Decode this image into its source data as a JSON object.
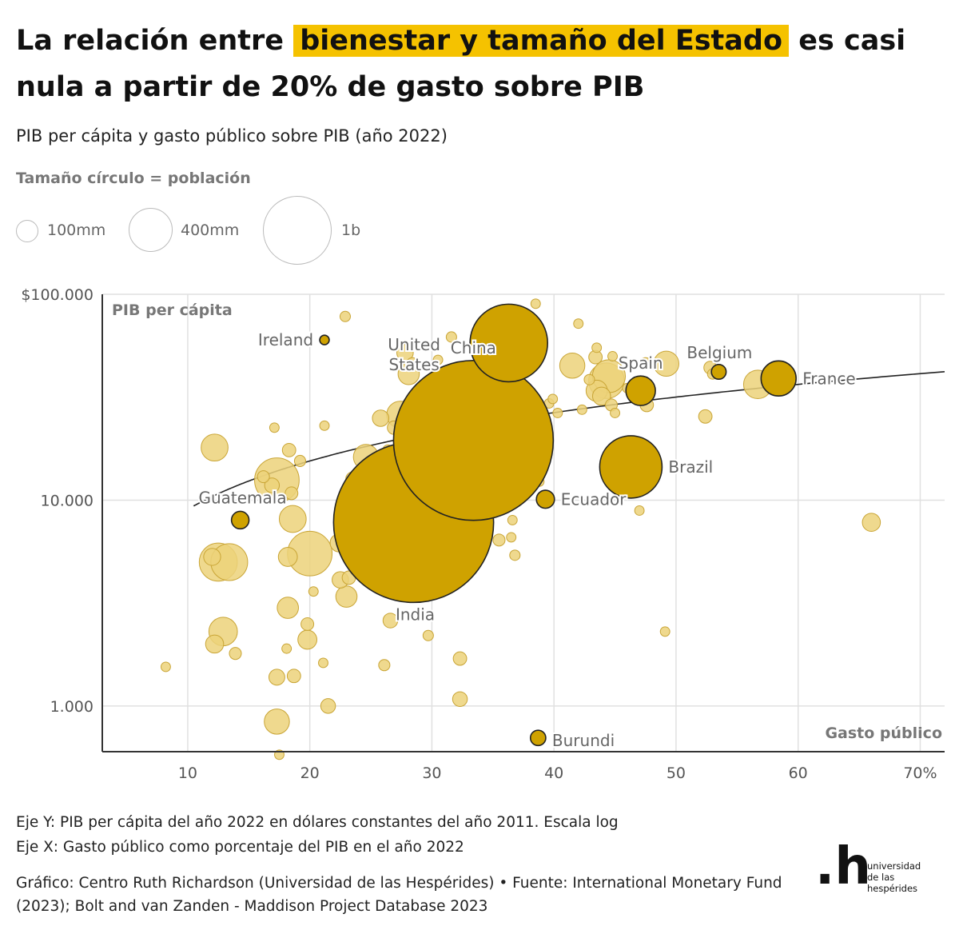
{
  "title": {
    "part1": "La relación entre",
    "highlight": "bienestar y tamaño del Estado",
    "part2": "es casi nula a partir de 20% de gasto sobre PIB"
  },
  "subtitle": "PIB per cápita y gasto público sobre PIB (año 2022)",
  "size_legend": {
    "title": "Tamaño círculo = población",
    "items": [
      {
        "label": "100mm",
        "population": 100000000
      },
      {
        "label": "400mm",
        "population": 400000000
      },
      {
        "label": "1b",
        "population": 1000000000
      }
    ]
  },
  "colors": {
    "highlight": "#f5c200",
    "highlighted_bubble": "#cfa200",
    "bubble": "#ecd27a",
    "bubble_stroke": "#c9a536",
    "grid": "#e0e0e0",
    "axis": "#333333",
    "trend": "#222222"
  },
  "chart_data": {
    "type": "scatter",
    "xlabel": "Gasto público",
    "ylabel": "PIB per cápita",
    "x_scale": "linear",
    "y_scale": "log",
    "xlim": [
      3,
      72
    ],
    "ylim": [
      600,
      100000
    ],
    "x_ticks": [
      {
        "value": 10,
        "label": "10"
      },
      {
        "value": 20,
        "label": "20"
      },
      {
        "value": 30,
        "label": "30"
      },
      {
        "value": 40,
        "label": "40"
      },
      {
        "value": 50,
        "label": "50"
      },
      {
        "value": 60,
        "label": "60"
      },
      {
        "value": 70,
        "label": "70%"
      }
    ],
    "y_ticks": [
      {
        "value": 1000,
        "label": "1.000"
      },
      {
        "value": 10000,
        "label": "10.000"
      },
      {
        "value": 100000,
        "label": "$100.000"
      }
    ],
    "trend_line": {
      "type": "logarithmic",
      "x0": 10.5,
      "x1": 72,
      "y_at_20": 15500,
      "y_at_60": 36500
    },
    "highlighted": [
      {
        "name": "Ireland",
        "x": 21.2,
        "y": 60000,
        "pop_m": 5,
        "label_pos": "left"
      },
      {
        "name": "United States",
        "x": 36.3,
        "y": 58000,
        "pop_m": 333,
        "label_pos": "left-stacked"
      },
      {
        "name": "China",
        "x": 33.4,
        "y": 19500,
        "pop_m": 1412,
        "label_pos": "top"
      },
      {
        "name": "India",
        "x": 28.5,
        "y": 7800,
        "pop_m": 1417,
        "label_pos": "bottom"
      },
      {
        "name": "Spain",
        "x": 47.1,
        "y": 34000,
        "pop_m": 48,
        "label_pos": "top"
      },
      {
        "name": "Belgium",
        "x": 53.5,
        "y": 42000,
        "pop_m": 12,
        "label_pos": "top"
      },
      {
        "name": "France",
        "x": 58.4,
        "y": 39000,
        "pop_m": 68,
        "label_pos": "right"
      },
      {
        "name": "Brazil",
        "x": 46.3,
        "y": 14500,
        "pop_m": 215,
        "label_pos": "right"
      },
      {
        "name": "Ecuador",
        "x": 39.3,
        "y": 10100,
        "pop_m": 18,
        "label_pos": "right"
      },
      {
        "name": "Guatemala",
        "x": 14.3,
        "y": 8000,
        "pop_m": 17,
        "label_pos": "top-left"
      },
      {
        "name": "Burundi",
        "x": 38.7,
        "y": 700,
        "pop_m": 13,
        "label_pos": "right"
      }
    ],
    "others": [
      {
        "x": 8.2,
        "y": 1550,
        "pop_m": 5
      },
      {
        "x": 12.2,
        "y": 18000,
        "pop_m": 40
      },
      {
        "x": 12.0,
        "y": 5300,
        "pop_m": 16
      },
      {
        "x": 12.5,
        "y": 5000,
        "pop_m": 80
      },
      {
        "x": 13.4,
        "y": 5000,
        "pop_m": 75
      },
      {
        "x": 12.9,
        "y": 2300,
        "pop_m": 45
      },
      {
        "x": 12.2,
        "y": 2000,
        "pop_m": 18
      },
      {
        "x": 13.9,
        "y": 1800,
        "pop_m": 8
      },
      {
        "x": 16.2,
        "y": 13000,
        "pop_m": 8
      },
      {
        "x": 16.9,
        "y": 11800,
        "pop_m": 12
      },
      {
        "x": 17.3,
        "y": 12500,
        "pop_m": 110
      },
      {
        "x": 17.1,
        "y": 22500,
        "pop_m": 5
      },
      {
        "x": 18.3,
        "y": 17500,
        "pop_m": 10
      },
      {
        "x": 19.2,
        "y": 15500,
        "pop_m": 7
      },
      {
        "x": 18.5,
        "y": 10800,
        "pop_m": 9
      },
      {
        "x": 18.6,
        "y": 8100,
        "pop_m": 40
      },
      {
        "x": 18.2,
        "y": 5300,
        "pop_m": 20
      },
      {
        "x": 20.0,
        "y": 5500,
        "pop_m": 110
      },
      {
        "x": 18.2,
        "y": 3000,
        "pop_m": 25
      },
      {
        "x": 20.3,
        "y": 3600,
        "pop_m": 5
      },
      {
        "x": 19.8,
        "y": 2500,
        "pop_m": 9
      },
      {
        "x": 19.8,
        "y": 2100,
        "pop_m": 20
      },
      {
        "x": 18.1,
        "y": 1900,
        "pop_m": 5
      },
      {
        "x": 18.7,
        "y": 1400,
        "pop_m": 10
      },
      {
        "x": 17.3,
        "y": 1380,
        "pop_m": 14
      },
      {
        "x": 21.1,
        "y": 1620,
        "pop_m": 5
      },
      {
        "x": 17.3,
        "y": 840,
        "pop_m": 35
      },
      {
        "x": 17.5,
        "y": 580,
        "pop_m": 5
      },
      {
        "x": 21.5,
        "y": 1000,
        "pop_m": 12
      },
      {
        "x": 21.2,
        "y": 23000,
        "pop_m": 5
      },
      {
        "x": 22.9,
        "y": 78000,
        "pop_m": 6
      },
      {
        "x": 22.5,
        "y": 4100,
        "pop_m": 15
      },
      {
        "x": 22.4,
        "y": 6200,
        "pop_m": 18
      },
      {
        "x": 23.2,
        "y": 4200,
        "pop_m": 10
      },
      {
        "x": 23.0,
        "y": 3400,
        "pop_m": 25
      },
      {
        "x": 23.3,
        "y": 10500,
        "pop_m": 5
      },
      {
        "x": 23.5,
        "y": 12700,
        "pop_m": 10
      },
      {
        "x": 23.7,
        "y": 8700,
        "pop_m": 5
      },
      {
        "x": 24.3,
        "y": 5200,
        "pop_m": 8
      },
      {
        "x": 24.6,
        "y": 16200,
        "pop_m": 35
      },
      {
        "x": 25.1,
        "y": 4000,
        "pop_m": 10
      },
      {
        "x": 25.8,
        "y": 25000,
        "pop_m": 15
      },
      {
        "x": 26.4,
        "y": 17500,
        "pop_m": 6
      },
      {
        "x": 26.9,
        "y": 22500,
        "pop_m": 10
      },
      {
        "x": 27.4,
        "y": 26000,
        "pop_m": 40
      },
      {
        "x": 26.1,
        "y": 1580,
        "pop_m": 7
      },
      {
        "x": 26.6,
        "y": 2600,
        "pop_m": 12
      },
      {
        "x": 27.0,
        "y": 4300,
        "pop_m": 12
      },
      {
        "x": 27.8,
        "y": 52000,
        "pop_m": 15
      },
      {
        "x": 28.1,
        "y": 41000,
        "pop_m": 25
      },
      {
        "x": 28.4,
        "y": 46000,
        "pop_m": 8
      },
      {
        "x": 28.8,
        "y": 16000,
        "pop_m": 50
      },
      {
        "x": 29.1,
        "y": 13500,
        "pop_m": 35
      },
      {
        "x": 29.9,
        "y": 19500,
        "pop_m": 5
      },
      {
        "x": 30.0,
        "y": 11500,
        "pop_m": 10
      },
      {
        "x": 29.7,
        "y": 2200,
        "pop_m": 6
      },
      {
        "x": 30.5,
        "y": 48000,
        "pop_m": 5
      },
      {
        "x": 31.6,
        "y": 62000,
        "pop_m": 6
      },
      {
        "x": 32.2,
        "y": 11000,
        "pop_m": 15
      },
      {
        "x": 32.5,
        "y": 30500,
        "pop_m": 5
      },
      {
        "x": 32.3,
        "y": 1700,
        "pop_m": 10
      },
      {
        "x": 32.3,
        "y": 1080,
        "pop_m": 12
      },
      {
        "x": 32.8,
        "y": 9500,
        "pop_m": 10
      },
      {
        "x": 34.1,
        "y": 9200,
        "pop_m": 6
      },
      {
        "x": 34.8,
        "y": 13500,
        "pop_m": 40
      },
      {
        "x": 35.1,
        "y": 10800,
        "pop_m": 12
      },
      {
        "x": 35.5,
        "y": 6400,
        "pop_m": 8
      },
      {
        "x": 36.1,
        "y": 25000,
        "pop_m": 60
      },
      {
        "x": 36.7,
        "y": 24800,
        "pop_m": 20
      },
      {
        "x": 37.2,
        "y": 18000,
        "pop_m": 30
      },
      {
        "x": 37.0,
        "y": 13500,
        "pop_m": 40
      },
      {
        "x": 36.3,
        "y": 37500,
        "pop_m": 6
      },
      {
        "x": 36.5,
        "y": 6600,
        "pop_m": 5
      },
      {
        "x": 36.6,
        "y": 8000,
        "pop_m": 5
      },
      {
        "x": 36.8,
        "y": 5400,
        "pop_m": 6
      },
      {
        "x": 37.1,
        "y": 23000,
        "pop_m": 12
      },
      {
        "x": 38.3,
        "y": 53000,
        "pop_m": 15
      },
      {
        "x": 38.5,
        "y": 90000,
        "pop_m": 5
      },
      {
        "x": 38.3,
        "y": 20000,
        "pop_m": 5
      },
      {
        "x": 38.8,
        "y": 12300,
        "pop_m": 5
      },
      {
        "x": 39.6,
        "y": 29500,
        "pop_m": 5
      },
      {
        "x": 39.9,
        "y": 31000,
        "pop_m": 5
      },
      {
        "x": 40.3,
        "y": 26500,
        "pop_m": 5
      },
      {
        "x": 41.5,
        "y": 45000,
        "pop_m": 35
      },
      {
        "x": 42.0,
        "y": 72000,
        "pop_m": 5
      },
      {
        "x": 42.3,
        "y": 27500,
        "pop_m": 5
      },
      {
        "x": 42.9,
        "y": 38500,
        "pop_m": 6
      },
      {
        "x": 43.4,
        "y": 49500,
        "pop_m": 10
      },
      {
        "x": 43.5,
        "y": 55000,
        "pop_m": 5
      },
      {
        "x": 43.5,
        "y": 34000,
        "pop_m": 25
      },
      {
        "x": 43.9,
        "y": 32000,
        "pop_m": 18
      },
      {
        "x": 44.3,
        "y": 38000,
        "pop_m": 70
      },
      {
        "x": 44.5,
        "y": 40000,
        "pop_m": 60
      },
      {
        "x": 44.8,
        "y": 50000,
        "pop_m": 5
      },
      {
        "x": 44.7,
        "y": 29000,
        "pop_m": 8
      },
      {
        "x": 45.0,
        "y": 26500,
        "pop_m": 5
      },
      {
        "x": 46.0,
        "y": 35000,
        "pop_m": 5
      },
      {
        "x": 47.5,
        "y": 46000,
        "pop_m": 8
      },
      {
        "x": 47.6,
        "y": 29000,
        "pop_m": 10
      },
      {
        "x": 47.0,
        "y": 8900,
        "pop_m": 5
      },
      {
        "x": 49.2,
        "y": 46000,
        "pop_m": 35
      },
      {
        "x": 49.1,
        "y": 2300,
        "pop_m": 5
      },
      {
        "x": 52.4,
        "y": 25500,
        "pop_m": 10
      },
      {
        "x": 52.8,
        "y": 44000,
        "pop_m": 9
      },
      {
        "x": 53.0,
        "y": 41000,
        "pop_m": 6
      },
      {
        "x": 56.7,
        "y": 36500,
        "pop_m": 45
      },
      {
        "x": 66.0,
        "y": 7800,
        "pop_m": 18
      }
    ]
  },
  "footnotes": [
    "Eje Y: PIB per cápita del año 2022 en dólares constantes del año 2011. Escala log",
    "Eje X: Gasto público como porcentaje del PIB en el año 2022"
  ],
  "credit": "Gráfico: Centro Ruth Richardson (Universidad de las Hespérides) • Fuente: International Monetary Fund (2023); Bolt and van Zanden - Maddison Project Database 2023",
  "logo": {
    "mark": ".h",
    "lines": [
      "universidad",
      "de las",
      "hespérides"
    ]
  }
}
